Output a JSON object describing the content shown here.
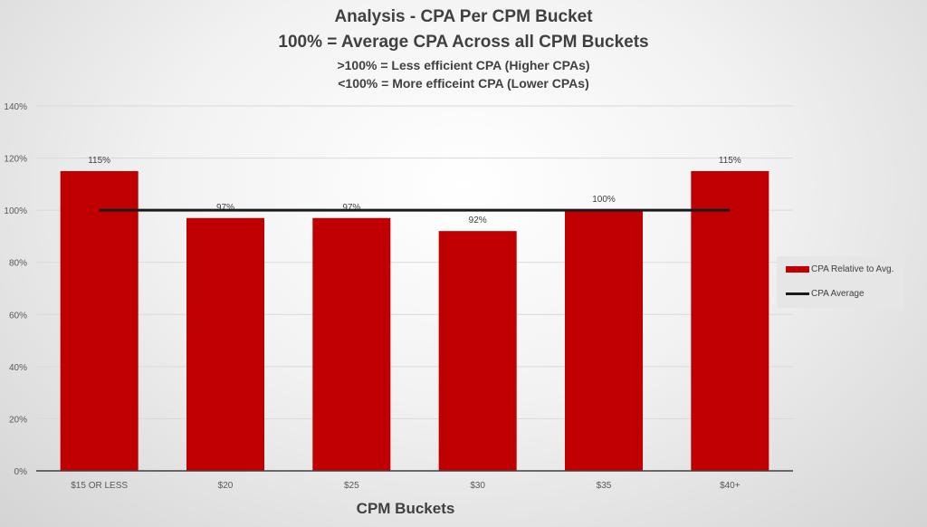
{
  "chart_data": {
    "type": "bar",
    "title": "Analysis - CPA Per CPM Bucket",
    "subtitles": [
      "100% = Average CPA Across all CPM Buckets",
      ">100% = Less efficient CPA (Higher CPAs)",
      "<100% = More efficeint CPA (Lower CPAs)"
    ],
    "xlabel": "CPM Buckets",
    "ylabel": "",
    "categories": [
      "$15 OR LESS",
      "$20",
      "$25",
      "$30",
      "$35",
      "$40+"
    ],
    "series": [
      {
        "name": "CPA Relative to Avg.",
        "type": "bar",
        "values": [
          115,
          97,
          97,
          92,
          100,
          115
        ],
        "labels": [
          "115%",
          "97%",
          "97%",
          "92%",
          "100%",
          "115%"
        ],
        "color": "#c00000"
      },
      {
        "name": "CPA Average",
        "type": "line",
        "values": [
          100,
          100,
          100,
          100,
          100,
          100
        ],
        "color": "#1a1a1a"
      }
    ],
    "ylim": [
      0,
      140
    ],
    "yticks": [
      "0%",
      "20%",
      "40%",
      "60%",
      "80%",
      "100%",
      "120%",
      "140%"
    ],
    "grid": true,
    "legend": "right"
  }
}
